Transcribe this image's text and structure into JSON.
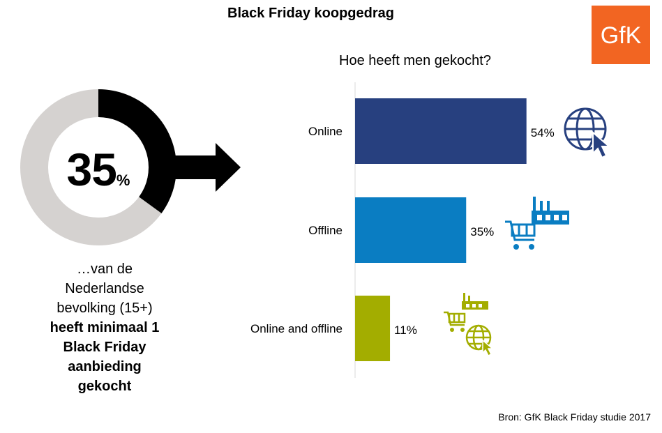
{
  "title": "Black Friday koopgedrag",
  "logo_text": "GfK",
  "headline": {
    "value": "35",
    "unit": "%",
    "line1": "…van de",
    "line2": "Nederlandse",
    "line3": "bevolking (15+)",
    "bold1": "heeft minimaal 1",
    "bold2": "Black Friday",
    "bold3": "aanbieding",
    "bold4": "gekocht"
  },
  "source": "Bron: GfK Black Friday studie 2017",
  "colors": {
    "logo": "#f26522",
    "donut_fill": "#000000",
    "donut_rest": "#d5d2d0",
    "online": "#27407f",
    "offline": "#0a7dc2",
    "both": "#a3ad00"
  },
  "chart_data": {
    "type": "bar",
    "orientation": "horizontal",
    "title": "Hoe heeft men gekocht?",
    "categories": [
      "Online",
      "Offline",
      "Online and offline"
    ],
    "values": [
      54,
      35,
      11
    ],
    "value_labels": [
      "54%",
      "35%",
      "11%"
    ],
    "icons": [
      "globe-cursor-icon",
      "cart-store-icon",
      "cart-store-globe-icon"
    ],
    "xlim": [
      0,
      100
    ],
    "grid": false,
    "legend": "none"
  }
}
